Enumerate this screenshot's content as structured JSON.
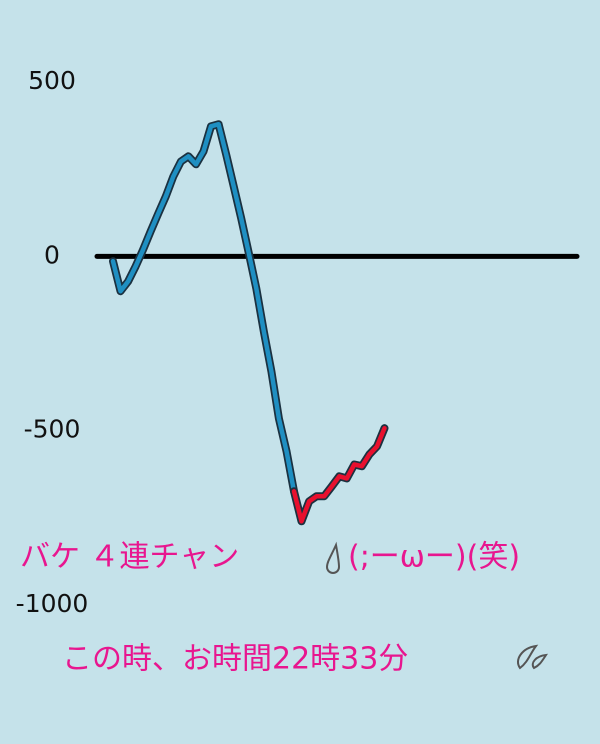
{
  "chart_data": {
    "type": "line",
    "ylim": [
      -1000,
      500
    ],
    "yticks": [
      500,
      0,
      -500,
      -1000
    ],
    "grid": true,
    "series": [
      {
        "color": "#1f8fc2",
        "values": [
          -14,
          -100,
          -72,
          -29,
          20,
          72,
          123,
          172,
          229,
          272,
          287,
          264,
          301,
          373,
          379,
          293,
          201,
          109,
          9,
          -92,
          -215,
          -330,
          -465,
          -559,
          -674,
          null,
          null,
          null,
          null,
          null,
          null,
          null,
          null,
          null,
          null,
          null,
          null
        ]
      },
      {
        "color": "#e8102e",
        "values": [
          null,
          null,
          null,
          null,
          null,
          null,
          null,
          null,
          null,
          null,
          null,
          null,
          null,
          null,
          null,
          null,
          null,
          null,
          null,
          null,
          null,
          null,
          null,
          null,
          -674,
          -760,
          -703,
          -688,
          -688,
          -660,
          -631,
          -637,
          -597,
          -602,
          -568,
          -545,
          -493
        ]
      }
    ],
    "annotations": [
      "バケ ４連チャン",
      "(;ーωー)(笑)",
      "この時、お時間22時33分"
    ]
  }
}
